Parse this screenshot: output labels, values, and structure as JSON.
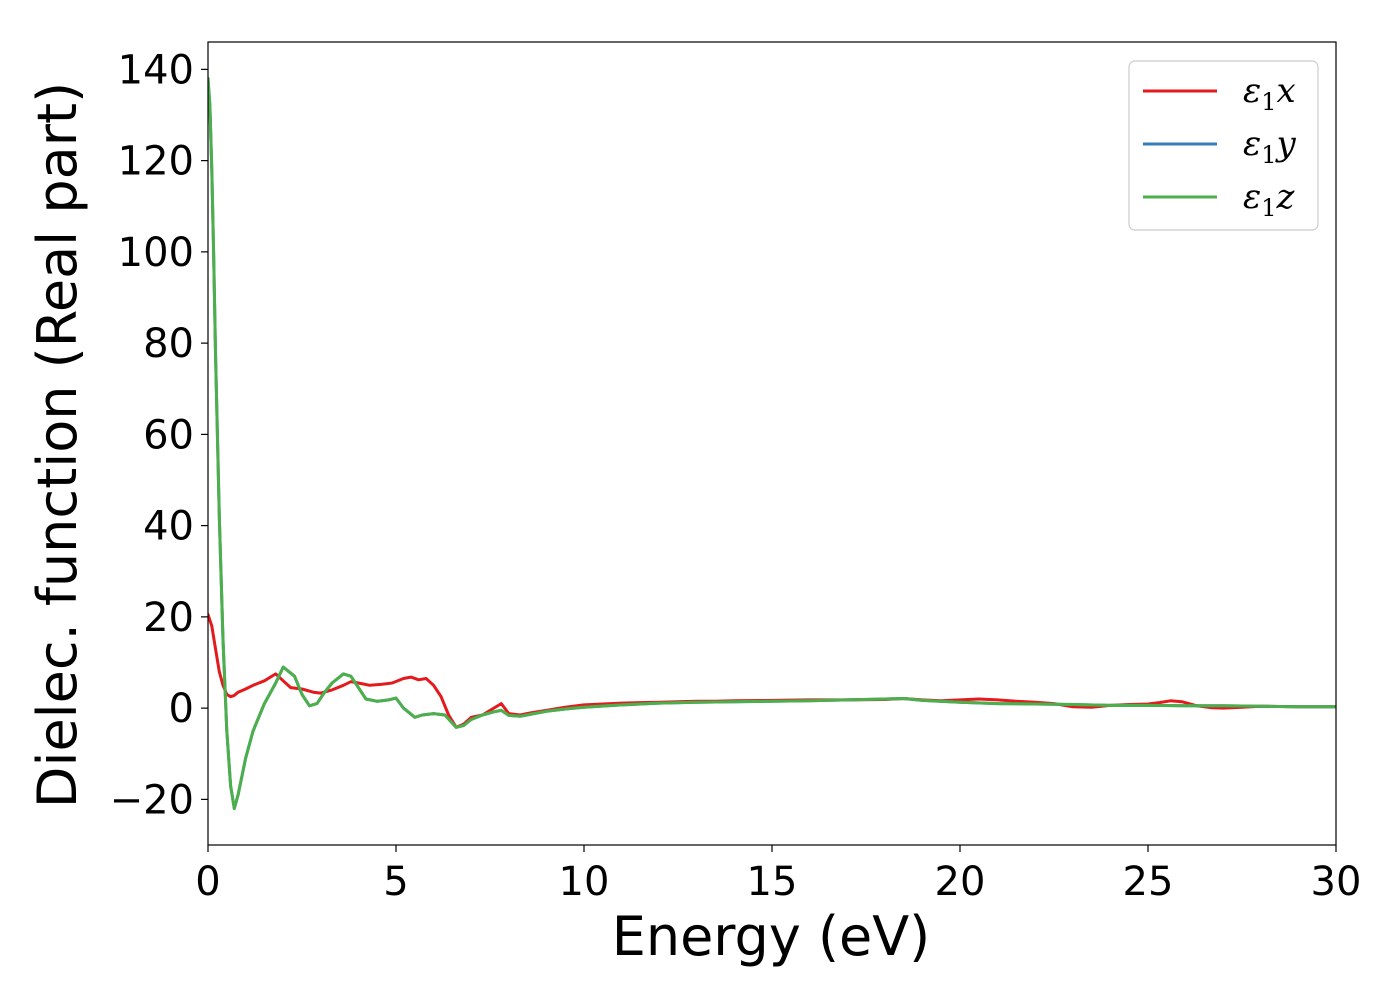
{
  "chart_data": {
    "type": "line",
    "title": "",
    "xlabel": "Energy (eV)",
    "ylabel": "Dielec. function (Real part)",
    "xlim": [
      0,
      30
    ],
    "ylim": [
      -30,
      146
    ],
    "xticks": [
      0,
      5,
      10,
      15,
      20,
      25,
      30
    ],
    "yticks": [
      -20,
      0,
      20,
      40,
      60,
      80,
      100,
      120,
      140
    ],
    "xtick_labels": [
      "0",
      "5",
      "10",
      "15",
      "20",
      "25",
      "30"
    ],
    "ytick_labels": [
      "−20",
      "0",
      "20",
      "40",
      "60",
      "80",
      "100",
      "120",
      "140"
    ],
    "grid": false,
    "legend_position": "top-right",
    "series": [
      {
        "name": "ε₁x",
        "legend_base": "ε",
        "legend_sub": "1",
        "legend_suffix": "x",
        "color": "#e41a1c",
        "x": [
          0,
          0.1,
          0.2,
          0.3,
          0.4,
          0.5,
          0.6,
          0.7,
          0.8,
          1.0,
          1.2,
          1.5,
          1.8,
          2.0,
          2.2,
          2.5,
          2.8,
          3.0,
          3.3,
          3.6,
          3.8,
          4.0,
          4.3,
          4.6,
          4.9,
          5.2,
          5.4,
          5.6,
          5.8,
          6.0,
          6.2,
          6.4,
          6.6,
          6.8,
          7.0,
          7.3,
          7.6,
          7.8,
          8.0,
          8.3,
          8.6,
          9.0,
          9.5,
          10.0,
          10.5,
          11.0,
          11.5,
          12.0,
          12.5,
          13.0,
          13.5,
          14.0,
          15.0,
          16.0,
          17.0,
          18.0,
          18.5,
          19.0,
          19.5,
          20.0,
          20.5,
          21.0,
          21.5,
          22.0,
          22.5,
          23.0,
          23.5,
          24.0,
          24.5,
          25.0,
          25.3,
          25.6,
          25.9,
          26.3,
          26.7,
          27.0,
          27.5,
          28.0,
          29.0,
          30.0
        ],
        "values": [
          20.5,
          18,
          13,
          8,
          5,
          3,
          2.5,
          2.8,
          3.5,
          4.2,
          5,
          6,
          7.5,
          6,
          4.5,
          4.2,
          3.5,
          3.3,
          4,
          5,
          5.8,
          5.5,
          5,
          5.2,
          5.5,
          6.5,
          6.8,
          6.2,
          6.5,
          5,
          2.5,
          -1.5,
          -4.2,
          -3.5,
          -2,
          -1.5,
          0,
          1,
          -1.2,
          -1.5,
          -1,
          -0.5,
          0.2,
          0.7,
          0.9,
          1.1,
          1.2,
          1.3,
          1.4,
          1.5,
          1.5,
          1.6,
          1.7,
          1.8,
          1.8,
          1.9,
          2.1,
          1.8,
          1.6,
          1.8,
          2,
          1.8,
          1.5,
          1.3,
          1,
          0.3,
          0.2,
          0.6,
          0.8,
          0.9,
          1.2,
          1.6,
          1.4,
          0.5,
          0.1,
          0,
          0.2,
          0.4,
          0.3,
          0.3
        ]
      },
      {
        "name": "ε₁y",
        "legend_base": "ε",
        "legend_sub": "1",
        "legend_suffix": "y",
        "color": "#377eb8",
        "x": [
          0,
          0.05,
          0.1,
          0.15,
          0.2,
          0.3,
          0.4,
          0.5,
          0.6,
          0.7,
          0.8,
          1.0,
          1.2,
          1.5,
          1.8,
          2.0,
          2.3,
          2.5,
          2.7,
          2.9,
          3.1,
          3.3,
          3.6,
          3.8,
          4.0,
          4.2,
          4.5,
          4.8,
          5.0,
          5.2,
          5.5,
          5.7,
          6.0,
          6.3,
          6.6,
          6.8,
          7.0,
          7.3,
          7.6,
          7.8,
          8.0,
          8.3,
          8.6,
          9.0,
          9.5,
          10.0,
          11.0,
          12.0,
          13.0,
          14.0,
          15.0,
          16.0,
          17.0,
          18.0,
          18.5,
          19.0,
          20.0,
          21.0,
          22.0,
          23.0,
          24.0,
          25.0,
          26.0,
          27.0,
          28.0,
          29.0,
          30.0
        ],
        "values": [
          138,
          132,
          118,
          100,
          78,
          42,
          15,
          -5,
          -17,
          -22,
          -19,
          -11,
          -5,
          1,
          5.5,
          9,
          7,
          3,
          0.5,
          1,
          3.5,
          5.5,
          7.5,
          7,
          4.5,
          2,
          1.5,
          1.8,
          2.2,
          0,
          -2,
          -1.5,
          -1.2,
          -1.5,
          -4.2,
          -3.8,
          -2.5,
          -1.5,
          -0.8,
          -0.5,
          -1.6,
          -1.8,
          -1.3,
          -0.7,
          -0.2,
          0.2,
          0.7,
          1.1,
          1.3,
          1.4,
          1.5,
          1.6,
          1.8,
          2,
          2.1,
          1.7,
          1.3,
          1,
          0.9,
          0.8,
          0.6,
          0.6,
          0.5,
          0.5,
          0.4,
          0.3,
          0.3
        ]
      },
      {
        "name": "ε₁z",
        "legend_base": "ε",
        "legend_sub": "1",
        "legend_suffix": "z",
        "color": "#4daf4a",
        "x": [
          0,
          0.05,
          0.1,
          0.15,
          0.2,
          0.3,
          0.4,
          0.5,
          0.6,
          0.7,
          0.8,
          1.0,
          1.2,
          1.5,
          1.8,
          2.0,
          2.3,
          2.5,
          2.7,
          2.9,
          3.1,
          3.3,
          3.6,
          3.8,
          4.0,
          4.2,
          4.5,
          4.8,
          5.0,
          5.2,
          5.5,
          5.7,
          6.0,
          6.3,
          6.6,
          6.8,
          7.0,
          7.3,
          7.6,
          7.8,
          8.0,
          8.3,
          8.6,
          9.0,
          9.5,
          10.0,
          11.0,
          12.0,
          13.0,
          14.0,
          15.0,
          16.0,
          17.0,
          18.0,
          18.5,
          19.0,
          20.0,
          21.0,
          22.0,
          23.0,
          24.0,
          25.0,
          26.0,
          27.0,
          28.0,
          29.0,
          30.0
        ],
        "values": [
          138,
          132,
          118,
          100,
          78,
          42,
          15,
          -5,
          -17,
          -22,
          -19,
          -11,
          -5,
          1,
          5.5,
          9,
          7,
          3,
          0.5,
          1,
          3.5,
          5.5,
          7.5,
          7,
          4.5,
          2,
          1.5,
          1.8,
          2.2,
          0,
          -2,
          -1.5,
          -1.2,
          -1.5,
          -4.2,
          -3.8,
          -2.5,
          -1.5,
          -0.8,
          -0.5,
          -1.6,
          -1.8,
          -1.3,
          -0.7,
          -0.2,
          0.2,
          0.7,
          1.1,
          1.3,
          1.4,
          1.5,
          1.6,
          1.8,
          2,
          2.1,
          1.7,
          1.3,
          1,
          0.9,
          0.8,
          0.6,
          0.6,
          0.5,
          0.5,
          0.4,
          0.3,
          0.3
        ]
      }
    ]
  }
}
